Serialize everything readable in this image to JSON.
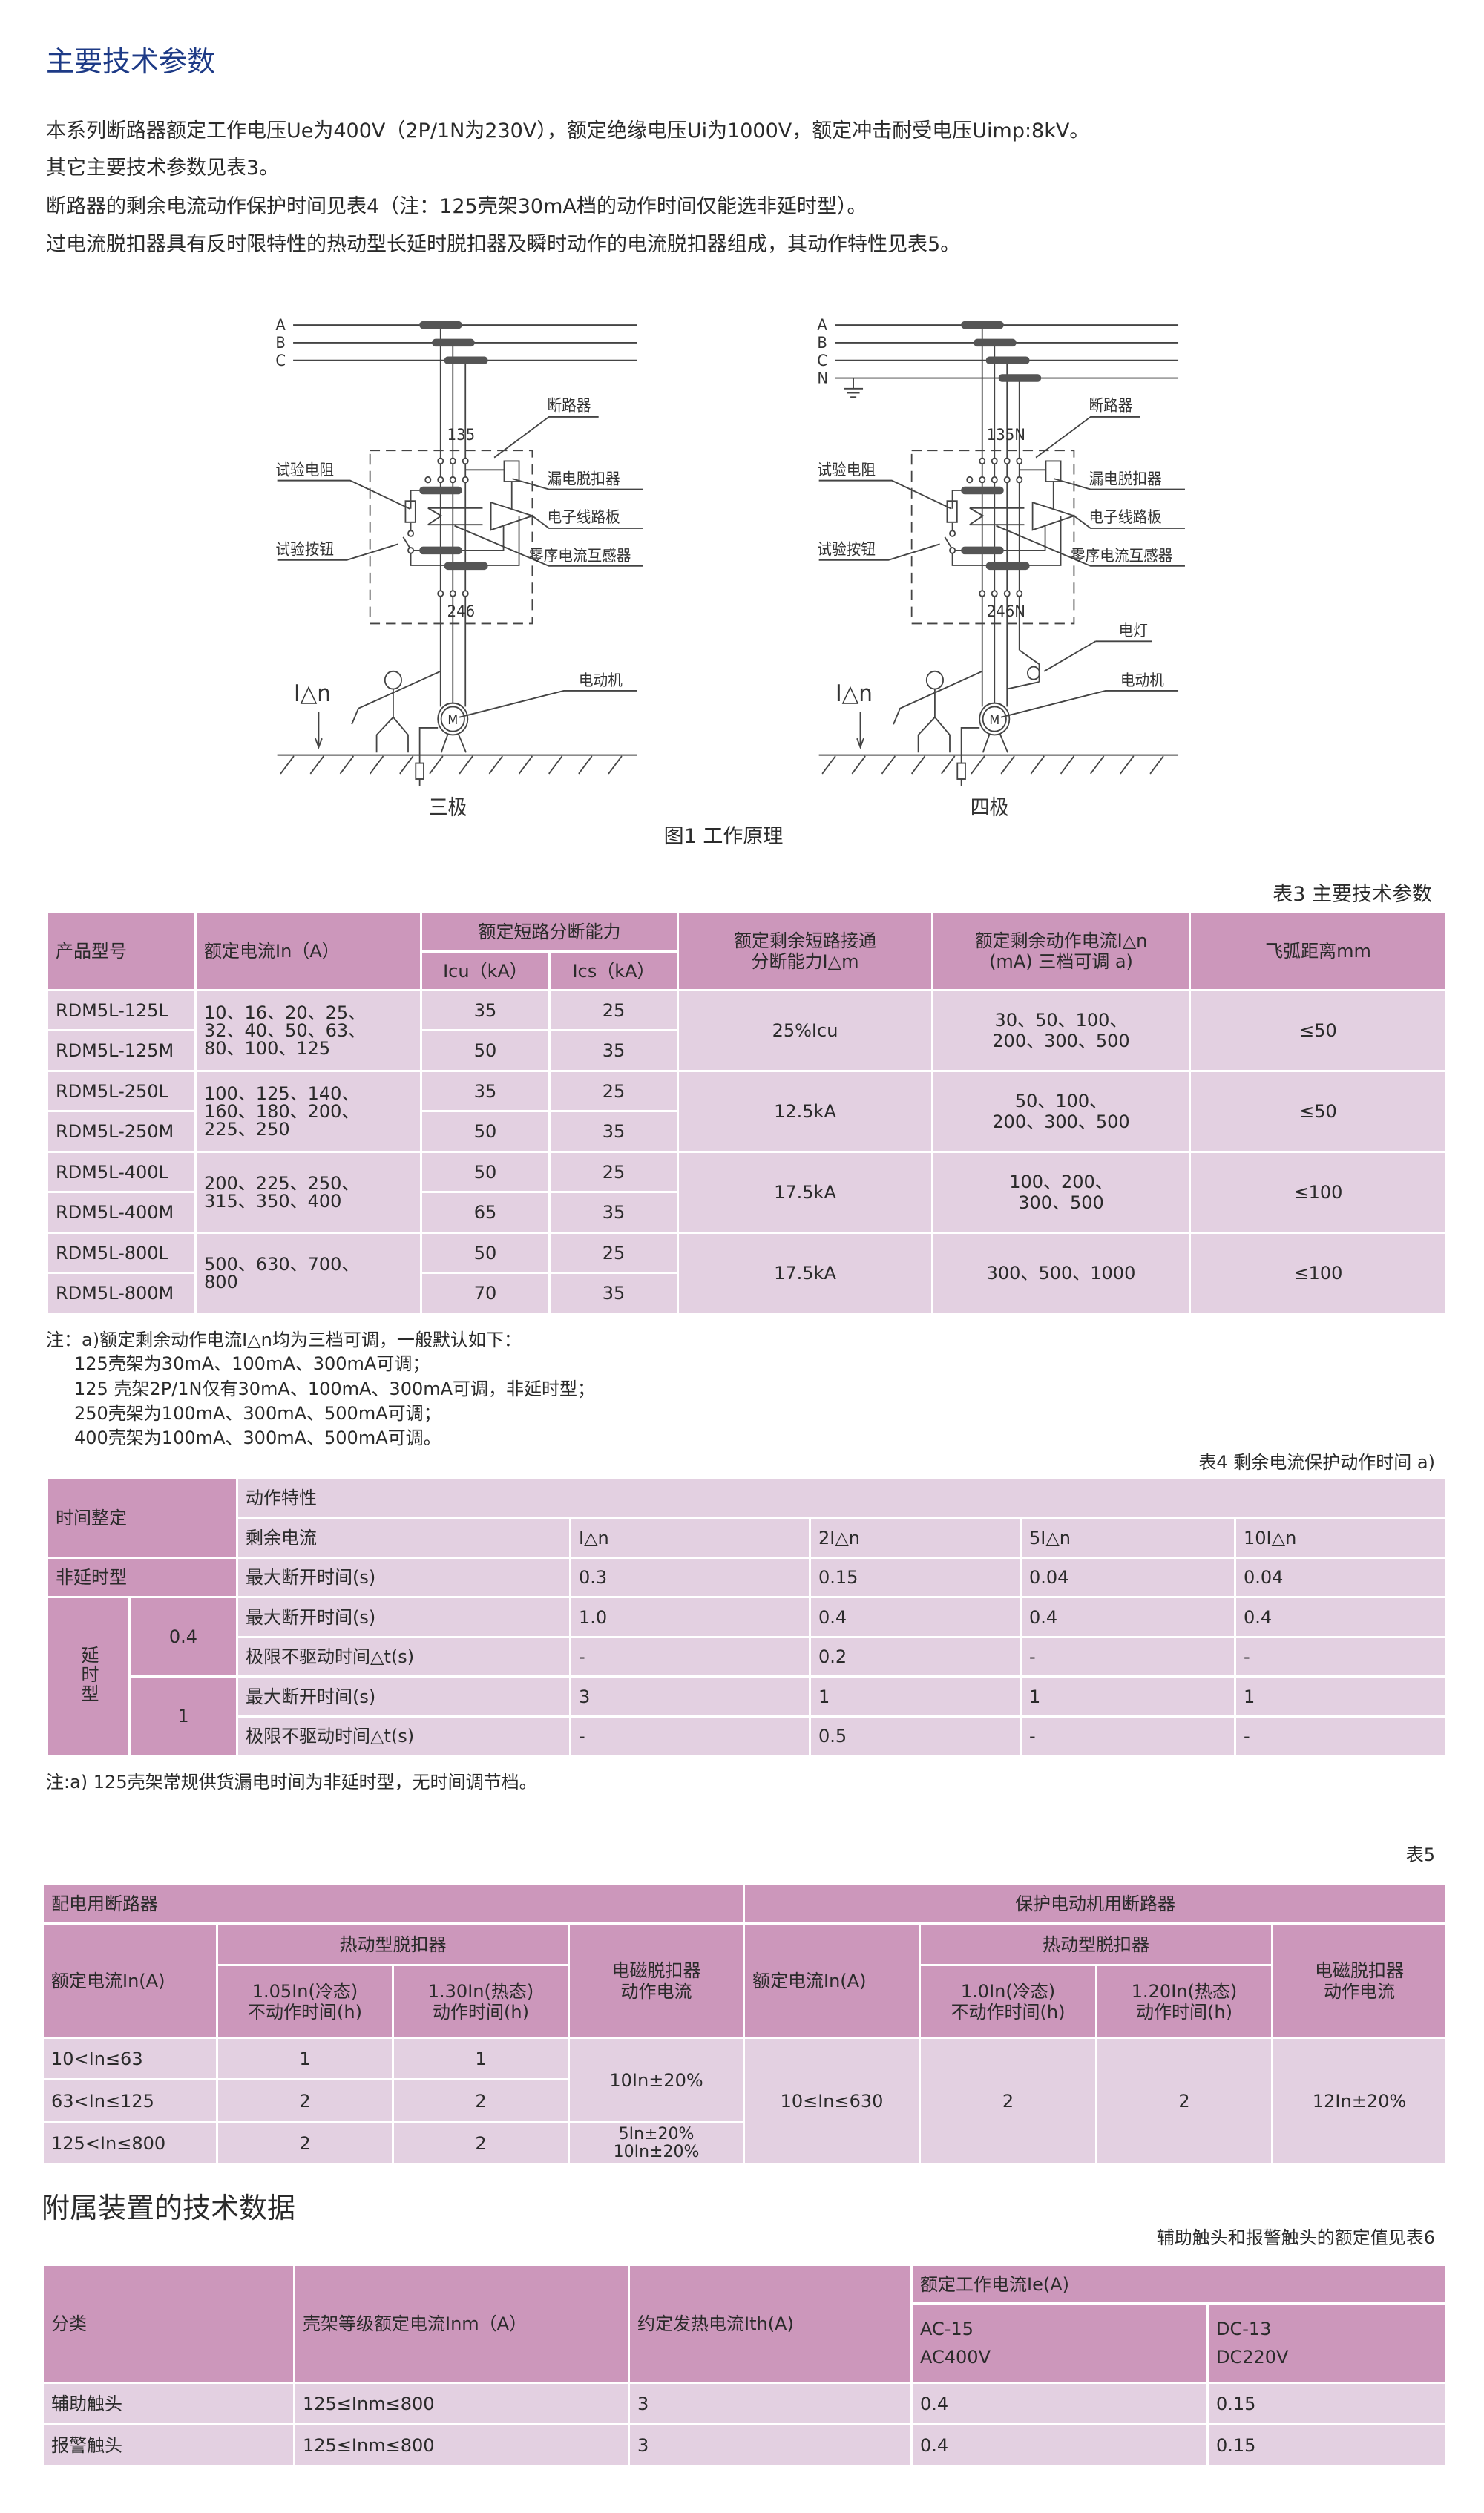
{
  "section_title": "主要技术参数",
  "paragraphs": [
    "本系列断路器额定工作电压Ue为400V（2P/1N为230V），额定绝缘电压Ui为1000V，额定冲击耐受电压Uimp:8kV。",
    "其它主要技术参数见表3。",
    "断路器的剩余电流动作保护时间见表4（注：125壳架30mA档的动作时间仅能选非延时型）。",
    "过电流脱扣器具有反时限特性的热动型长延时脱扣器及瞬时动作的电流脱扣器组成，其动作特性见表5。"
  ],
  "figure": {
    "caption": "图1 工作原理",
    "three_pole": {
      "phases": [
        "A",
        "B",
        "C"
      ],
      "top_terminals": "135",
      "bottom_terminals": "246",
      "labels": {
        "breaker": "断路器",
        "test_resistor": "试验电阻",
        "leakage_release": "漏电脱扣器",
        "circuit_board": "电子线路板",
        "test_button": "试验按钮",
        "zero_ct": "零序电流互感器",
        "motor": "电动机",
        "residual": "I△n",
        "motor_symbol": "M"
      },
      "title": "三极"
    },
    "four_pole": {
      "phases": [
        "A",
        "B",
        "C",
        "N"
      ],
      "top_terminals": "135N",
      "bottom_terminals": "246N",
      "labels": {
        "breaker": "断路器",
        "test_resistor": "试验电阻",
        "leakage_release": "漏电脱扣器",
        "circuit_board": "电子线路板",
        "test_button": "试验按钮",
        "zero_ct": "零序电流互感器",
        "lamp": "电灯",
        "motor": "电动机",
        "residual": "I△n",
        "motor_symbol": "M"
      },
      "title": "四极"
    }
  },
  "colors": {
    "title": "#1d3a86",
    "header_bg": "#cc97bb",
    "body_bg": "#e3d0e1"
  },
  "table3": {
    "caption": "表3 主要技术参数",
    "headers": {
      "model": "产品型号",
      "current": "额定电流In（A）",
      "breaking": "额定短路分断能力",
      "icu": "Icu（kA）",
      "ics": "Ics（kA）",
      "im": [
        "额定剩余短路接通",
        "分断能力I△m"
      ],
      "idn": [
        "额定剩余动作电流I△n",
        "(mA) 三档可调 a)"
      ],
      "arc": "飞弧距离mm"
    },
    "groups": [
      {
        "models": [
          "RDM5L-125L",
          "RDM5L-125M"
        ],
        "current": [
          "10、16、20、25、",
          "32、40、50、63、",
          "80、100、125"
        ],
        "icu": [
          "35",
          "50"
        ],
        "ics": [
          "25",
          "35"
        ],
        "im": "25%Icu",
        "idn": [
          "30、50、100、",
          "200、300、500"
        ],
        "arc": "≤50"
      },
      {
        "models": [
          "RDM5L-250L",
          "RDM5L-250M"
        ],
        "current": [
          "100、125、140、",
          "160、180、200、",
          "225、250"
        ],
        "icu": [
          "35",
          "50"
        ],
        "ics": [
          "25",
          "35"
        ],
        "im": "12.5kA",
        "idn": [
          "50、100、",
          "200、300、500"
        ],
        "arc": "≤50"
      },
      {
        "models": [
          "RDM5L-400L",
          "RDM5L-400M"
        ],
        "current": [
          "200、225、250、",
          "315、350、400"
        ],
        "icu": [
          "50",
          "65"
        ],
        "ics": [
          "25",
          "35"
        ],
        "im": "17.5kA",
        "idn": [
          "100、200、",
          "300、500"
        ],
        "arc": "≤100"
      },
      {
        "models": [
          "RDM5L-800L",
          "RDM5L-800M"
        ],
        "current": [
          "500、630、700、",
          "800"
        ],
        "icu": [
          "50",
          "70"
        ],
        "ics": [
          "25",
          "35"
        ],
        "im": "17.5kA",
        "idn": [
          "300、500、1000"
        ],
        "arc": "≤100"
      }
    ],
    "notes": [
      "注：a)额定剩余动作电流I△n均为三档可调，一般默认如下：",
      "125壳架为30mA、100mA、300mA可调；",
      "125 壳架2P/1N仅有30mA、100mA、300mA可调，非延时型；",
      "250壳架为100mA、300mA、500mA可调；",
      "400壳架为100mA、300mA、500mA可调。"
    ]
  },
  "table4": {
    "caption": "表4 剩余电流保护动作时间 a)",
    "time_setting": "时间整定",
    "characteristics": "动作特性",
    "residual_current": "剩余电流",
    "multiples": [
      "I△n",
      "2I△n",
      "5I△n",
      "10I△n"
    ],
    "non_delay": {
      "label": "非延时型",
      "row": {
        "label": "最大断开时间(s)",
        "values": [
          "0.3",
          "0.15",
          "0.04",
          "0.04"
        ]
      }
    },
    "delay": {
      "label": "延时型",
      "settings": [
        {
          "setting": "0.4",
          "rows": [
            {
              "label": "最大断开时间(s)",
              "values": [
                "1.0",
                "0.4",
                "0.4",
                "0.4"
              ]
            },
            {
              "label": "极限不驱动时间△t(s)",
              "values": [
                "-",
                "0.2",
                "-",
                "-"
              ]
            }
          ]
        },
        {
          "setting": "1",
          "rows": [
            {
              "label": "最大断开时间(s)",
              "values": [
                "3",
                "1",
                "1",
                "1"
              ]
            },
            {
              "label": "极限不驱动时间△t(s)",
              "values": [
                "-",
                "0.5",
                "-",
                "-"
              ]
            }
          ]
        }
      ]
    },
    "note": "注:a) 125壳架常规供货漏电时间为非延时型，无时间调节档。"
  },
  "table5": {
    "caption": "表5",
    "distribution": {
      "title": "配电用断路器",
      "current": "额定电流In(A)",
      "thermal": "热动型脱扣器",
      "cold": [
        "1.05In(冷态)",
        "不动作时间(h)"
      ],
      "hot": [
        "1.30In(热态)",
        "动作时间(h)"
      ],
      "magnetic": [
        "电磁脱扣器",
        "动作电流"
      ],
      "rows": [
        {
          "range": "10<In≤63",
          "cold": "1",
          "hot": "1"
        },
        {
          "range": "63<In≤125",
          "cold": "2",
          "hot": "2"
        },
        {
          "range": "125<In≤800",
          "cold": "2",
          "hot": "2"
        }
      ],
      "magnetic_values": [
        "10In±20%",
        [
          "5In±20%",
          "10In±20%"
        ]
      ]
    },
    "motor": {
      "title": "保护电动机用断路器",
      "current": "额定电流In(A)",
      "thermal": "热动型脱扣器",
      "cold": [
        "1.0In(冷态)",
        "不动作时间(h)"
      ],
      "hot": [
        "1.20In(热态)",
        "动作时间(h)"
      ],
      "magnetic": [
        "电磁脱扣器",
        "动作电流"
      ],
      "range": "10≤In≤630",
      "cold_value": "2",
      "hot_value": "2",
      "magnetic_value": "12In±20%"
    }
  },
  "accessories": {
    "title": "附属装置的技术数据",
    "caption": "辅助触头和报警触头的额定值见表6",
    "headers": {
      "category": "分类",
      "frame": "壳架等级额定电流Inm（A）",
      "ith": "约定发热电流Ith(A)",
      "ie": "额定工作电流Ie(A)",
      "ac": [
        "AC-15",
        "AC400V"
      ],
      "dc": [
        "DC-13",
        "DC220V"
      ]
    },
    "rows": [
      {
        "category": "辅助触头",
        "frame": "125≤Inm≤800",
        "ith": "3",
        "ac": "0.4",
        "dc": "0.15"
      },
      {
        "category": "报警触头",
        "frame": "125≤Inm≤800",
        "ith": "3",
        "ac": "0.4",
        "dc": "0.15"
      }
    ]
  }
}
